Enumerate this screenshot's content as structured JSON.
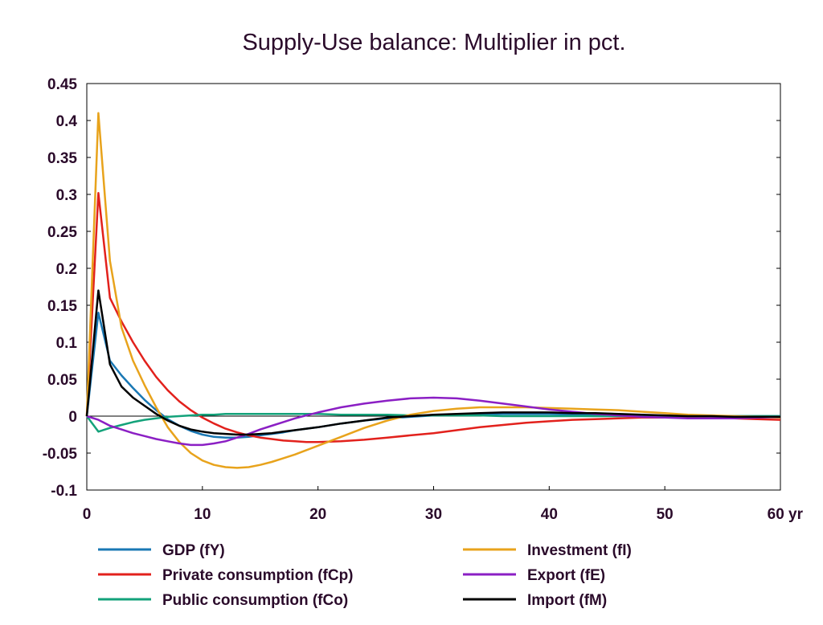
{
  "chart_data": {
    "type": "line",
    "title": "Supply-Use balance: Multiplier in pct.",
    "xlabel": "",
    "ylabel": "",
    "x_unit_label": "yr",
    "xlim": [
      0,
      60
    ],
    "ylim": [
      -0.1,
      0.45
    ],
    "x_ticks": [
      0,
      10,
      20,
      30,
      40,
      50,
      60
    ],
    "x_tick_labels": [
      "0",
      "10",
      "20",
      "30",
      "40",
      "50",
      "60 yr"
    ],
    "y_ticks": [
      -0.1,
      -0.05,
      0,
      0.05,
      0.1,
      0.15,
      0.2,
      0.25,
      0.3,
      0.35,
      0.4,
      0.45
    ],
    "y_tick_labels": [
      "-0.1",
      "-0.05",
      "0",
      "0.05",
      "0.1",
      "0.15",
      "0.2",
      "0.25",
      "0.3",
      "0.35",
      "0.4",
      "0.45"
    ],
    "grid": false,
    "legend_position": "bottom",
    "x": [
      0,
      1,
      2,
      3,
      4,
      5,
      6,
      7,
      8,
      9,
      10,
      11,
      12,
      13,
      14,
      15,
      16,
      17,
      18,
      19,
      20,
      22,
      24,
      26,
      28,
      30,
      32,
      34,
      36,
      38,
      40,
      42,
      44,
      46,
      48,
      50,
      52,
      54,
      56,
      58,
      60
    ],
    "series": [
      {
        "name": "GDP (fY)",
        "color": "#1a78b4",
        "values": [
          0,
          0.14,
          0.075,
          0.055,
          0.038,
          0.022,
          0.008,
          -0.004,
          -0.013,
          -0.02,
          -0.025,
          -0.028,
          -0.029,
          -0.029,
          -0.028,
          -0.026,
          -0.024,
          -0.022,
          -0.019,
          -0.017,
          -0.015,
          -0.01,
          -0.006,
          -0.003,
          -0.001,
          0.001,
          0.002,
          0.003,
          0.003,
          0.003,
          0.003,
          0.002,
          0.002,
          0.001,
          0.001,
          0,
          0,
          0,
          0,
          0,
          0
        ]
      },
      {
        "name": "Private consumption (fCp)",
        "color": "#e2211c",
        "values": [
          0,
          0.302,
          0.16,
          0.128,
          0.1,
          0.075,
          0.053,
          0.035,
          0.02,
          0.008,
          -0.002,
          -0.01,
          -0.017,
          -0.022,
          -0.026,
          -0.029,
          -0.031,
          -0.033,
          -0.034,
          -0.035,
          -0.035,
          -0.034,
          -0.032,
          -0.029,
          -0.026,
          -0.023,
          -0.019,
          -0.015,
          -0.012,
          -0.009,
          -0.007,
          -0.005,
          -0.004,
          -0.003,
          -0.002,
          -0.002,
          -0.002,
          -0.002,
          -0.003,
          -0.004,
          -0.005
        ]
      },
      {
        "name": "Public consumption (fCo)",
        "color": "#13a27a",
        "values": [
          0,
          -0.021,
          -0.016,
          -0.012,
          -0.008,
          -0.005,
          -0.003,
          -0.001,
          0,
          0.001,
          0.002,
          0.002,
          0.003,
          0.003,
          0.003,
          0.003,
          0.003,
          0.003,
          0.003,
          0.003,
          0.003,
          0.002,
          0.002,
          0.002,
          0.001,
          0.001,
          0.001,
          0.001,
          0,
          0,
          0,
          0,
          0,
          0,
          0,
          0,
          0,
          0,
          0,
          0,
          0
        ]
      },
      {
        "name": "Investment (fI)",
        "color": "#e8a31c",
        "values": [
          0,
          0.41,
          0.21,
          0.12,
          0.075,
          0.042,
          0.012,
          -0.015,
          -0.035,
          -0.05,
          -0.06,
          -0.066,
          -0.069,
          -0.07,
          -0.069,
          -0.066,
          -0.062,
          -0.057,
          -0.052,
          -0.046,
          -0.04,
          -0.028,
          -0.016,
          -0.006,
          0.002,
          0.007,
          0.01,
          0.012,
          0.012,
          0.012,
          0.011,
          0.01,
          0.009,
          0.008,
          0.006,
          0.004,
          0.002,
          0.001,
          0,
          -0.001,
          -0.002
        ]
      },
      {
        "name": "Export (fE)",
        "color": "#8b1fc4",
        "values": [
          0,
          -0.005,
          -0.013,
          -0.018,
          -0.023,
          -0.027,
          -0.031,
          -0.034,
          -0.037,
          -0.039,
          -0.039,
          -0.037,
          -0.034,
          -0.029,
          -0.024,
          -0.018,
          -0.013,
          -0.008,
          -0.003,
          0.001,
          0.005,
          0.012,
          0.017,
          0.021,
          0.024,
          0.025,
          0.024,
          0.021,
          0.017,
          0.013,
          0.009,
          0.006,
          0.003,
          0.001,
          -0.001,
          -0.002,
          -0.003,
          -0.003,
          -0.003,
          -0.002,
          -0.001
        ]
      },
      {
        "name": "Import (fM)",
        "color": "#000000",
        "values": [
          0,
          0.17,
          0.07,
          0.04,
          0.025,
          0.014,
          0.003,
          -0.006,
          -0.013,
          -0.018,
          -0.021,
          -0.023,
          -0.024,
          -0.025,
          -0.025,
          -0.024,
          -0.023,
          -0.021,
          -0.019,
          -0.017,
          -0.015,
          -0.01,
          -0.006,
          -0.002,
          0,
          0.002,
          0.003,
          0.004,
          0.005,
          0.005,
          0.005,
          0.004,
          0.004,
          0.003,
          0.002,
          0.001,
          0,
          0,
          -0.001,
          -0.001,
          -0.001
        ]
      }
    ]
  }
}
